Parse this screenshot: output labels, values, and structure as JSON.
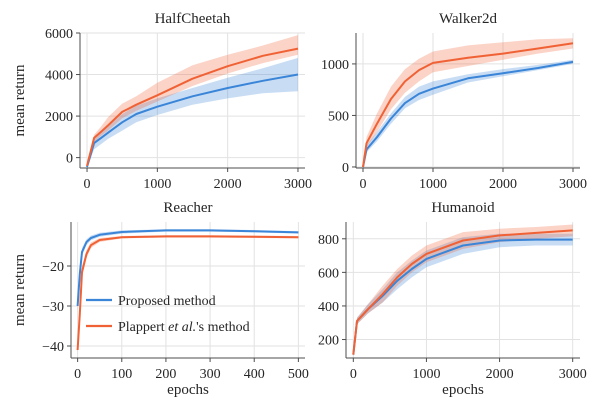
{
  "colors": {
    "proposed": "#3a85d8",
    "plappert": "#f06235"
  },
  "legend": {
    "entries": [
      {
        "series": "proposed",
        "label": "Proposed method"
      },
      {
        "series": "plappert",
        "label_prefix": "Plappert ",
        "label_em": "et al.",
        "label_suffix": "'s method"
      }
    ]
  },
  "chart_data": [
    {
      "type": "line",
      "title": "HalfCheetah",
      "xlabel": "",
      "ylabel": "mean return",
      "xlim": [
        -100,
        3100
      ],
      "ylim": [
        -500,
        6000
      ],
      "xticks": [
        0,
        1000,
        2000,
        3000
      ],
      "yticks": [
        0,
        2000,
        4000,
        6000
      ],
      "grid": true,
      "x": [
        0,
        100,
        200,
        300,
        500,
        700,
        1000,
        1500,
        2000,
        2500,
        3000
      ],
      "series": [
        {
          "key": "proposed",
          "values": [
            -450,
            700,
            950,
            1200,
            1700,
            2100,
            2450,
            2950,
            3350,
            3700,
            4000
          ],
          "lower": [
            -500,
            400,
            650,
            900,
            1300,
            1700,
            2050,
            2550,
            2850,
            3100,
            3200
          ],
          "upper": [
            -350,
            1000,
            1250,
            1500,
            2100,
            2500,
            2850,
            3350,
            3850,
            4300,
            4800
          ]
        },
        {
          "key": "plappert",
          "values": [
            -400,
            950,
            1250,
            1550,
            2200,
            2550,
            3000,
            3800,
            4400,
            4900,
            5250
          ],
          "lower": [
            -500,
            750,
            1050,
            1300,
            1900,
            2250,
            2700,
            3450,
            4050,
            4550,
            4950
          ],
          "upper": [
            -300,
            1100,
            1500,
            1950,
            2600,
            2950,
            3600,
            4450,
            4950,
            5400,
            5900
          ]
        }
      ]
    },
    {
      "type": "line",
      "title": "Walker2d",
      "xlabel": "",
      "ylabel": "",
      "xlim": [
        -100,
        3100
      ],
      "ylim": [
        -10,
        1300
      ],
      "xticks": [
        0,
        1000,
        2000,
        3000
      ],
      "yticks": [
        0,
        500,
        1000
      ],
      "grid": true,
      "x": [
        0,
        50,
        200,
        400,
        600,
        800,
        1000,
        1500,
        2000,
        2500,
        3000
      ],
      "series": [
        {
          "key": "proposed",
          "values": [
            0,
            170,
            290,
            470,
            620,
            710,
            760,
            860,
            910,
            960,
            1020
          ],
          "lower": [
            0,
            140,
            250,
            420,
            570,
            650,
            700,
            820,
            880,
            940,
            1000
          ],
          "upper": [
            0,
            210,
            340,
            520,
            680,
            780,
            830,
            900,
            950,
            990,
            1040
          ]
        },
        {
          "key": "plappert",
          "values": [
            0,
            230,
            420,
            660,
            830,
            940,
            1010,
            1060,
            1100,
            1150,
            1200
          ],
          "lower": [
            0,
            190,
            340,
            560,
            720,
            830,
            920,
            980,
            1040,
            1100,
            1150
          ],
          "upper": [
            0,
            290,
            520,
            780,
            950,
            1050,
            1120,
            1180,
            1210,
            1240,
            1250
          ]
        }
      ]
    },
    {
      "type": "line",
      "title": "Reacher",
      "xlabel": "epochs",
      "ylabel": "mean return",
      "xlim": [
        -15,
        515
      ],
      "ylim": [
        -43,
        -9
      ],
      "xticks": [
        0,
        100,
        200,
        300,
        400,
        500
      ],
      "yticks": [
        -40,
        -30,
        -20
      ],
      "grid": true,
      "x": [
        0,
        5,
        10,
        20,
        30,
        50,
        100,
        200,
        300,
        400,
        500
      ],
      "series": [
        {
          "key": "proposed",
          "values": [
            -30,
            -22,
            -16.5,
            -14,
            -13,
            -12.2,
            -11.5,
            -11.1,
            -11.1,
            -11.3,
            -11.6
          ],
          "lower": [
            -31,
            -23,
            -17.5,
            -14.8,
            -13.6,
            -12.7,
            -11.9,
            -11.4,
            -11.4,
            -11.6,
            -11.9
          ],
          "upper": [
            -29,
            -21,
            -15.5,
            -13.3,
            -12.4,
            -11.7,
            -11.1,
            -10.8,
            -10.8,
            -11,
            -11.3
          ]
        },
        {
          "key": "plappert",
          "values": [
            -41,
            -32,
            -21.5,
            -17,
            -14.8,
            -13.5,
            -12.8,
            -12.6,
            -12.6,
            -12.7,
            -12.8
          ],
          "lower": [
            -42,
            -33.5,
            -23,
            -18,
            -15.5,
            -14,
            -13.1,
            -12.9,
            -12.9,
            -13,
            -13.1
          ],
          "upper": [
            -40,
            -30.5,
            -20,
            -16,
            -14.1,
            -13,
            -12.5,
            -12.3,
            -12.3,
            -12.4,
            -12.5
          ]
        }
      ]
    },
    {
      "type": "line",
      "title": "Humanoid",
      "xlabel": "epochs",
      "ylabel": "",
      "xlim": [
        -100,
        3100
      ],
      "ylim": [
        90,
        900
      ],
      "xticks": [
        0,
        1000,
        2000,
        3000
      ],
      "yticks": [
        200,
        400,
        600,
        800
      ],
      "grid": true,
      "x": [
        0,
        50,
        200,
        400,
        600,
        800,
        1000,
        1500,
        2000,
        2500,
        3000
      ],
      "series": [
        {
          "key": "proposed",
          "values": [
            110,
            310,
            380,
            460,
            550,
            620,
            680,
            760,
            790,
            795,
            795
          ],
          "lower": [
            100,
            290,
            355,
            420,
            500,
            570,
            630,
            710,
            750,
            760,
            760
          ],
          "upper": [
            120,
            330,
            410,
            500,
            600,
            670,
            730,
            810,
            830,
            830,
            830
          ]
        },
        {
          "key": "plappert",
          "values": [
            110,
            310,
            380,
            470,
            570,
            650,
            710,
            790,
            820,
            835,
            850
          ],
          "lower": [
            100,
            290,
            355,
            420,
            520,
            600,
            660,
            740,
            780,
            800,
            815
          ],
          "upper": [
            120,
            330,
            410,
            520,
            620,
            700,
            760,
            840,
            860,
            870,
            885
          ]
        }
      ]
    }
  ]
}
